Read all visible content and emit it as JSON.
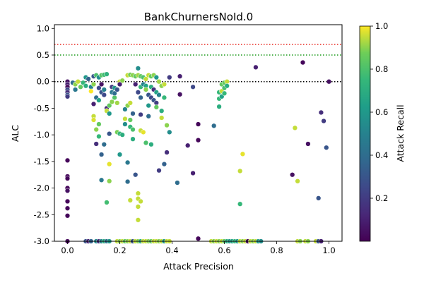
{
  "chart_data": {
    "type": "scatter",
    "title": "BankChurnersNoId.0",
    "xlabel": "Attack Precision",
    "ylabel": "ALC",
    "xlim": [
      -0.05,
      1.05
    ],
    "ylim": [
      -3.0,
      1.07
    ],
    "xticks": [
      "0.0",
      "0.2",
      "0.4",
      "0.6",
      "0.8",
      "1.0"
    ],
    "yticks": [
      "1.0",
      "0.5",
      "0.0",
      "-0.5",
      "-1.0",
      "-1.5",
      "-2.0",
      "-2.5",
      "-3.0"
    ],
    "grid": false,
    "reference_lines": [
      {
        "y": 0.7,
        "color": "#e8231a",
        "style": "dotted"
      },
      {
        "y": 0.5,
        "color": "#1a9a1a",
        "style": "dotted"
      },
      {
        "y": 0.0,
        "color": "#000000",
        "style": "dotted"
      }
    ],
    "colorbar": {
      "label": "Attack Recall",
      "colormap": "viridis",
      "range": [
        0.0,
        1.0
      ],
      "ticks": [
        "0.2",
        "0.4",
        "0.6",
        "0.8",
        "1.0"
      ]
    },
    "points": [
      {
        "x": 0.0,
        "y": 0.0,
        "c": 0.05
      },
      {
        "x": 0.0,
        "y": -0.05,
        "c": 0.1
      },
      {
        "x": 0.0,
        "y": -0.1,
        "c": 0.02
      },
      {
        "x": 0.0,
        "y": -0.15,
        "c": 0.25
      },
      {
        "x": 0.0,
        "y": -0.2,
        "c": 0.15
      },
      {
        "x": 0.0,
        "y": -0.25,
        "c": 0.3
      },
      {
        "x": 0.0,
        "y": -0.28,
        "c": 0.2
      },
      {
        "x": 0.0,
        "y": -1.48,
        "c": 0.02
      },
      {
        "x": 0.0,
        "y": -1.78,
        "c": 0.02
      },
      {
        "x": 0.0,
        "y": -1.82,
        "c": 0.02
      },
      {
        "x": 0.0,
        "y": -2.0,
        "c": 0.02
      },
      {
        "x": 0.0,
        "y": -2.05,
        "c": 0.05
      },
      {
        "x": 0.0,
        "y": -2.25,
        "c": 0.02
      },
      {
        "x": 0.0,
        "y": -2.38,
        "c": 0.02
      },
      {
        "x": 0.0,
        "y": -2.52,
        "c": 0.02
      },
      {
        "x": 0.0,
        "y": -3.0,
        "c": 0.02
      },
      {
        "x": 0.02,
        "y": -0.02,
        "c": 0.4
      },
      {
        "x": 0.03,
        "y": -0.05,
        "c": 0.9
      },
      {
        "x": 0.03,
        "y": -0.15,
        "c": 0.45
      },
      {
        "x": 0.04,
        "y": 0.0,
        "c": 0.95
      },
      {
        "x": 0.05,
        "y": -0.1,
        "c": 0.85
      },
      {
        "x": 0.06,
        "y": -0.02,
        "c": 0.75
      },
      {
        "x": 0.07,
        "y": 0.08,
        "c": 0.6
      },
      {
        "x": 0.07,
        "y": -0.08,
        "c": 0.7
      },
      {
        "x": 0.08,
        "y": 0.05,
        "c": 0.35
      },
      {
        "x": 0.09,
        "y": -0.1,
        "c": 0.5
      },
      {
        "x": 0.09,
        "y": -0.18,
        "c": 1.0
      },
      {
        "x": 0.1,
        "y": 0.1,
        "c": 0.3
      },
      {
        "x": 0.1,
        "y": -0.05,
        "c": 0.9
      },
      {
        "x": 0.1,
        "y": -0.42,
        "c": 0.1
      },
      {
        "x": 0.1,
        "y": -0.65,
        "c": 0.95
      },
      {
        "x": 0.1,
        "y": -0.72,
        "c": 0.97
      },
      {
        "x": 0.11,
        "y": 0.12,
        "c": 0.8
      },
      {
        "x": 0.11,
        "y": -0.3,
        "c": 0.4
      },
      {
        "x": 0.11,
        "y": -0.9,
        "c": 0.9
      },
      {
        "x": 0.11,
        "y": -1.17,
        "c": 0.15
      },
      {
        "x": 0.12,
        "y": 0.08,
        "c": 0.55
      },
      {
        "x": 0.12,
        "y": -0.12,
        "c": 0.25
      },
      {
        "x": 0.12,
        "y": -0.35,
        "c": 0.65
      },
      {
        "x": 0.12,
        "y": -0.8,
        "c": 0.85
      },
      {
        "x": 0.12,
        "y": -1.03,
        "c": 0.75
      },
      {
        "x": 0.13,
        "y": 0.12,
        "c": 0.82
      },
      {
        "x": 0.13,
        "y": -0.05,
        "c": 0.05
      },
      {
        "x": 0.13,
        "y": -0.2,
        "c": 0.3
      },
      {
        "x": 0.13,
        "y": -1.37,
        "c": 0.35
      },
      {
        "x": 0.13,
        "y": -1.85,
        "c": 0.45
      },
      {
        "x": 0.14,
        "y": 0.13,
        "c": 0.78
      },
      {
        "x": 0.14,
        "y": -0.15,
        "c": 0.5
      },
      {
        "x": 0.14,
        "y": -0.25,
        "c": 0.25
      },
      {
        "x": 0.14,
        "y": -1.18,
        "c": 0.4
      },
      {
        "x": 0.15,
        "y": 0.14,
        "c": 0.72
      },
      {
        "x": 0.15,
        "y": -0.5,
        "c": 0.15
      },
      {
        "x": 0.15,
        "y": -0.55,
        "c": 0.95
      },
      {
        "x": 0.15,
        "y": -2.27,
        "c": 0.78
      },
      {
        "x": 0.16,
        "y": -0.45,
        "c": 0.85
      },
      {
        "x": 0.16,
        "y": -0.6,
        "c": 0.6
      },
      {
        "x": 0.16,
        "y": -0.98,
        "c": 0.3
      },
      {
        "x": 0.16,
        "y": -1.55,
        "c": 0.98
      },
      {
        "x": 0.16,
        "y": -1.87,
        "c": 0.9
      },
      {
        "x": 0.17,
        "y": -0.38,
        "c": 0.9
      },
      {
        "x": 0.17,
        "y": -0.2,
        "c": 0.45
      },
      {
        "x": 0.17,
        "y": -0.1,
        "c": 0.2
      },
      {
        "x": 0.18,
        "y": -0.3,
        "c": 0.82
      },
      {
        "x": 0.18,
        "y": -0.22,
        "c": 0.4
      },
      {
        "x": 0.18,
        "y": -0.12,
        "c": 0.6
      },
      {
        "x": 0.19,
        "y": -0.15,
        "c": 0.3
      },
      {
        "x": 0.19,
        "y": -0.4,
        "c": 0.92
      },
      {
        "x": 0.19,
        "y": -0.95,
        "c": 0.88
      },
      {
        "x": 0.2,
        "y": 0.0,
        "c": 0.95
      },
      {
        "x": 0.2,
        "y": -0.05,
        "c": 0.1
      },
      {
        "x": 0.2,
        "y": -1.37,
        "c": 0.6
      },
      {
        "x": 0.2,
        "y": -0.98,
        "c": 0.75
      },
      {
        "x": 0.21,
        "y": 0.02,
        "c": 0.9
      },
      {
        "x": 0.21,
        "y": -1.0,
        "c": 0.7
      },
      {
        "x": 0.22,
        "y": -0.52,
        "c": 0.5
      },
      {
        "x": 0.22,
        "y": -0.7,
        "c": 0.95
      },
      {
        "x": 0.22,
        "y": -0.8,
        "c": 0.55
      },
      {
        "x": 0.23,
        "y": 0.12,
        "c": 0.95
      },
      {
        "x": 0.23,
        "y": -0.45,
        "c": 0.9
      },
      {
        "x": 0.23,
        "y": -1.52,
        "c": 0.45
      },
      {
        "x": 0.23,
        "y": -1.88,
        "c": 0.4
      },
      {
        "x": 0.24,
        "y": 0.13,
        "c": 0.88
      },
      {
        "x": 0.24,
        "y": -0.4,
        "c": 0.95
      },
      {
        "x": 0.24,
        "y": -0.72,
        "c": 0.85
      },
      {
        "x": 0.24,
        "y": -0.85,
        "c": 0.75
      },
      {
        "x": 0.24,
        "y": -2.23,
        "c": 0.95
      },
      {
        "x": 0.25,
        "y": 0.12,
        "c": 0.9
      },
      {
        "x": 0.25,
        "y": -0.6,
        "c": 0.35
      },
      {
        "x": 0.25,
        "y": -0.9,
        "c": 0.8
      },
      {
        "x": 0.25,
        "y": -1.08,
        "c": 0.7
      },
      {
        "x": 0.26,
        "y": 0.1,
        "c": 0.85
      },
      {
        "x": 0.26,
        "y": -0.05,
        "c": 0.1
      },
      {
        "x": 0.26,
        "y": -1.75,
        "c": 0.3
      },
      {
        "x": 0.27,
        "y": 0.25,
        "c": 0.55
      },
      {
        "x": 0.27,
        "y": 0.12,
        "c": 0.92
      },
      {
        "x": 0.27,
        "y": -0.2,
        "c": 0.25
      },
      {
        "x": 0.27,
        "y": -2.1,
        "c": 0.95
      },
      {
        "x": 0.27,
        "y": -2.2,
        "c": 0.95
      },
      {
        "x": 0.27,
        "y": -2.35,
        "c": 0.95
      },
      {
        "x": 0.27,
        "y": -2.6,
        "c": 0.95
      },
      {
        "x": 0.28,
        "y": 0.1,
        "c": 0.85
      },
      {
        "x": 0.28,
        "y": -0.1,
        "c": 0.75
      },
      {
        "x": 0.28,
        "y": -0.3,
        "c": 0.35
      },
      {
        "x": 0.28,
        "y": -0.62,
        "c": 0.2
      },
      {
        "x": 0.28,
        "y": -0.92,
        "c": 0.95
      },
      {
        "x": 0.28,
        "y": -2.25,
        "c": 0.95
      },
      {
        "x": 0.29,
        "y": 0.08,
        "c": 0.8
      },
      {
        "x": 0.29,
        "y": -0.05,
        "c": 0.5
      },
      {
        "x": 0.29,
        "y": -0.95,
        "c": 0.98
      },
      {
        "x": 0.3,
        "y": 0.05,
        "c": 0.95
      },
      {
        "x": 0.3,
        "y": -0.08,
        "c": 0.65
      },
      {
        "x": 0.3,
        "y": -0.15,
        "c": 0.9
      },
      {
        "x": 0.3,
        "y": -1.15,
        "c": 0.8
      },
      {
        "x": 0.31,
        "y": 0.12,
        "c": 0.95
      },
      {
        "x": 0.31,
        "y": -0.25,
        "c": 0.3
      },
      {
        "x": 0.31,
        "y": -0.45,
        "c": 0.6
      },
      {
        "x": 0.31,
        "y": -0.65,
        "c": 0.4
      },
      {
        "x": 0.32,
        "y": 0.1,
        "c": 0.85
      },
      {
        "x": 0.32,
        "y": -0.1,
        "c": 0.7
      },
      {
        "x": 0.32,
        "y": -0.3,
        "c": 0.25
      },
      {
        "x": 0.32,
        "y": -1.18,
        "c": 0.7
      },
      {
        "x": 0.33,
        "y": 0.12,
        "c": 0.9
      },
      {
        "x": 0.33,
        "y": -0.15,
        "c": 0.15
      },
      {
        "x": 0.33,
        "y": -0.35,
        "c": 0.3
      },
      {
        "x": 0.34,
        "y": 0.08,
        "c": 0.6
      },
      {
        "x": 0.34,
        "y": -0.2,
        "c": 0.65
      },
      {
        "x": 0.34,
        "y": -0.4,
        "c": 0.2
      },
      {
        "x": 0.34,
        "y": -0.48,
        "c": 0.85
      },
      {
        "x": 0.35,
        "y": 0.0,
        "c": 0.92
      },
      {
        "x": 0.35,
        "y": -0.25,
        "c": 0.5
      },
      {
        "x": 0.35,
        "y": -1.67,
        "c": 0.2
      },
      {
        "x": 0.36,
        "y": -0.08,
        "c": 0.9
      },
      {
        "x": 0.36,
        "y": -0.55,
        "c": 0.7
      },
      {
        "x": 0.36,
        "y": -0.68,
        "c": 0.95
      },
      {
        "x": 0.37,
        "y": -0.05,
        "c": 0.95
      },
      {
        "x": 0.37,
        "y": -0.3,
        "c": 0.75
      },
      {
        "x": 0.37,
        "y": -1.55,
        "c": 0.35
      },
      {
        "x": 0.38,
        "y": -0.82,
        "c": 0.9
      },
      {
        "x": 0.38,
        "y": -1.33,
        "c": 0.15
      },
      {
        "x": 0.39,
        "y": 0.08,
        "c": 0.2
      },
      {
        "x": 0.39,
        "y": -0.95,
        "c": 0.55
      },
      {
        "x": 0.42,
        "y": -1.9,
        "c": 0.4
      },
      {
        "x": 0.43,
        "y": 0.1,
        "c": 0.1
      },
      {
        "x": 0.43,
        "y": -0.24,
        "c": 0.05
      },
      {
        "x": 0.46,
        "y": -1.2,
        "c": 0.1
      },
      {
        "x": 0.48,
        "y": -0.1,
        "c": 0.25
      },
      {
        "x": 0.48,
        "y": -1.72,
        "c": 0.1
      },
      {
        "x": 0.5,
        "y": -0.8,
        "c": 0.02
      },
      {
        "x": 0.5,
        "y": -1.1,
        "c": 0.02
      },
      {
        "x": 0.5,
        "y": -2.95,
        "c": 0.02
      },
      {
        "x": 0.56,
        "y": -0.83,
        "c": 0.4
      },
      {
        "x": 0.58,
        "y": -0.2,
        "c": 0.75
      },
      {
        "x": 0.58,
        "y": -0.32,
        "c": 0.75
      },
      {
        "x": 0.58,
        "y": -0.47,
        "c": 0.7
      },
      {
        "x": 0.59,
        "y": -0.05,
        "c": 0.85
      },
      {
        "x": 0.59,
        "y": -0.18,
        "c": 0.95
      },
      {
        "x": 0.59,
        "y": -0.28,
        "c": 0.65
      },
      {
        "x": 0.6,
        "y": -0.02,
        "c": 0.85
      },
      {
        "x": 0.6,
        "y": -0.12,
        "c": 0.8
      },
      {
        "x": 0.6,
        "y": -0.22,
        "c": 0.75
      },
      {
        "x": 0.61,
        "y": 0.0,
        "c": 0.95
      },
      {
        "x": 0.61,
        "y": -0.08,
        "c": 0.7
      },
      {
        "x": 0.66,
        "y": -1.68,
        "c": 0.95
      },
      {
        "x": 0.66,
        "y": -2.3,
        "c": 0.75
      },
      {
        "x": 0.67,
        "y": -1.36,
        "c": 0.98
      },
      {
        "x": 0.72,
        "y": 0.27,
        "c": 0.1
      },
      {
        "x": 0.87,
        "y": -0.87,
        "c": 0.95
      },
      {
        "x": 0.86,
        "y": -1.75,
        "c": 0.05
      },
      {
        "x": 0.88,
        "y": -1.87,
        "c": 0.95
      },
      {
        "x": 0.9,
        "y": 0.36,
        "c": 0.02
      },
      {
        "x": 0.92,
        "y": -1.17,
        "c": 0.05
      },
      {
        "x": 0.96,
        "y": -2.19,
        "c": 0.3
      },
      {
        "x": 0.97,
        "y": -0.58,
        "c": 0.15
      },
      {
        "x": 0.98,
        "y": -0.74,
        "c": 0.2
      },
      {
        "x": 0.99,
        "y": -1.24,
        "c": 0.3
      },
      {
        "x": 1.0,
        "y": 0.0,
        "c": 0.05
      },
      {
        "x": 0.07,
        "y": -3.0,
        "c": 0.3
      },
      {
        "x": 0.08,
        "y": -3.0,
        "c": 0.1
      },
      {
        "x": 0.09,
        "y": -3.0,
        "c": 0.35
      },
      {
        "x": 0.11,
        "y": -3.0,
        "c": 0.55
      },
      {
        "x": 0.12,
        "y": -3.0,
        "c": 0.15
      },
      {
        "x": 0.13,
        "y": -3.0,
        "c": 0.5
      },
      {
        "x": 0.14,
        "y": -3.0,
        "c": 0.7
      },
      {
        "x": 0.15,
        "y": -3.0,
        "c": 0.4
      },
      {
        "x": 0.16,
        "y": -3.0,
        "c": 0.6
      },
      {
        "x": 0.19,
        "y": -3.0,
        "c": 0.95
      },
      {
        "x": 0.2,
        "y": -3.0,
        "c": 0.9
      },
      {
        "x": 0.21,
        "y": -3.0,
        "c": 0.95
      },
      {
        "x": 0.22,
        "y": -3.0,
        "c": 0.85
      },
      {
        "x": 0.23,
        "y": -3.0,
        "c": 0.9
      },
      {
        "x": 0.24,
        "y": -3.0,
        "c": 0.95
      },
      {
        "x": 0.25,
        "y": -3.0,
        "c": 0.3
      },
      {
        "x": 0.26,
        "y": -3.0,
        "c": 0.95
      },
      {
        "x": 0.27,
        "y": -3.0,
        "c": 0.9
      },
      {
        "x": 0.28,
        "y": -3.0,
        "c": 0.7
      },
      {
        "x": 0.29,
        "y": -3.0,
        "c": 0.95
      },
      {
        "x": 0.3,
        "y": -3.0,
        "c": 0.95
      },
      {
        "x": 0.31,
        "y": -3.0,
        "c": 0.9
      },
      {
        "x": 0.32,
        "y": -3.0,
        "c": 0.85
      },
      {
        "x": 0.33,
        "y": -3.0,
        "c": 0.95
      },
      {
        "x": 0.34,
        "y": -3.0,
        "c": 0.95
      },
      {
        "x": 0.35,
        "y": -3.0,
        "c": 0.9
      },
      {
        "x": 0.36,
        "y": -3.0,
        "c": 0.95
      },
      {
        "x": 0.37,
        "y": -3.0,
        "c": 0.6
      },
      {
        "x": 0.38,
        "y": -3.0,
        "c": 0.95
      },
      {
        "x": 0.39,
        "y": -3.0,
        "c": 0.95
      },
      {
        "x": 0.55,
        "y": -3.0,
        "c": 0.95
      },
      {
        "x": 0.56,
        "y": -3.0,
        "c": 0.9
      },
      {
        "x": 0.57,
        "y": -3.0,
        "c": 0.95
      },
      {
        "x": 0.58,
        "y": -3.0,
        "c": 0.9
      },
      {
        "x": 0.59,
        "y": -3.0,
        "c": 0.95
      },
      {
        "x": 0.6,
        "y": -3.0,
        "c": 0.85
      },
      {
        "x": 0.61,
        "y": -3.0,
        "c": 0.7
      },
      {
        "x": 0.62,
        "y": -3.0,
        "c": 0.6
      },
      {
        "x": 0.63,
        "y": -3.0,
        "c": 0.65
      },
      {
        "x": 0.64,
        "y": -3.0,
        "c": 0.75
      },
      {
        "x": 0.65,
        "y": -3.0,
        "c": 0.6
      },
      {
        "x": 0.66,
        "y": -3.0,
        "c": 0.95
      },
      {
        "x": 0.67,
        "y": -3.0,
        "c": 0.9
      },
      {
        "x": 0.68,
        "y": -3.0,
        "c": 0.95
      },
      {
        "x": 0.69,
        "y": -3.0,
        "c": 0.02
      },
      {
        "x": 0.7,
        "y": -3.0,
        "c": 0.95
      },
      {
        "x": 0.71,
        "y": -3.0,
        "c": 0.9
      },
      {
        "x": 0.72,
        "y": -3.0,
        "c": 0.95
      },
      {
        "x": 0.73,
        "y": -3.0,
        "c": 0.6
      },
      {
        "x": 0.74,
        "y": -3.0,
        "c": 0.55
      },
      {
        "x": 0.88,
        "y": -3.0,
        "c": 0.95
      },
      {
        "x": 0.89,
        "y": -3.0,
        "c": 0.9
      },
      {
        "x": 0.91,
        "y": -3.0,
        "c": 0.95
      },
      {
        "x": 0.92,
        "y": -3.0,
        "c": 0.9
      },
      {
        "x": 0.95,
        "y": -3.0,
        "c": 0.95
      },
      {
        "x": 0.96,
        "y": -3.0,
        "c": 0.3
      },
      {
        "x": 0.97,
        "y": -3.0,
        "c": 0.1
      }
    ]
  }
}
